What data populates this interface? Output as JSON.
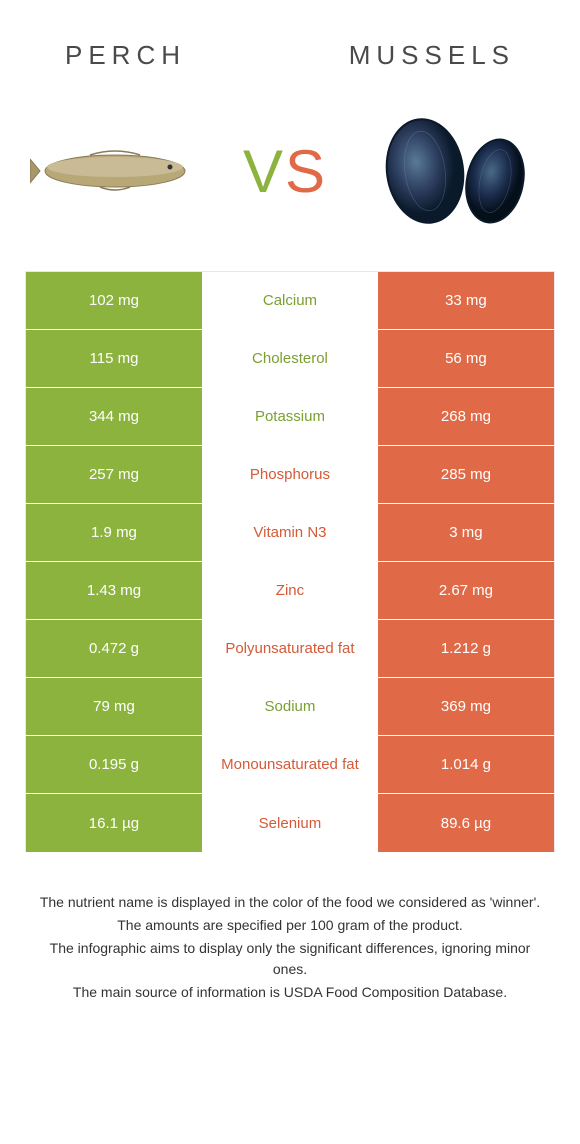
{
  "titles": {
    "left": "Perch",
    "right": "Mussels"
  },
  "vs": {
    "v": "V",
    "s": "S"
  },
  "colors": {
    "left": "#8bb33e",
    "right": "#e06a47",
    "text_green": "#7aa030",
    "text_orange": "#d45a38"
  },
  "rows": [
    {
      "left": "102 mg",
      "label": "Calcium",
      "right": "33 mg",
      "winner": "left"
    },
    {
      "left": "115 mg",
      "label": "Cholesterol",
      "right": "56 mg",
      "winner": "left"
    },
    {
      "left": "344 mg",
      "label": "Potassium",
      "right": "268 mg",
      "winner": "left"
    },
    {
      "left": "257 mg",
      "label": "Phosphorus",
      "right": "285 mg",
      "winner": "right"
    },
    {
      "left": "1.9 mg",
      "label": "Vitamin N3",
      "right": "3 mg",
      "winner": "right"
    },
    {
      "left": "1.43 mg",
      "label": "Zinc",
      "right": "2.67 mg",
      "winner": "right"
    },
    {
      "left": "0.472 g",
      "label": "Polyunsaturated fat",
      "right": "1.212 g",
      "winner": "right"
    },
    {
      "left": "79 mg",
      "label": "Sodium",
      "right": "369 mg",
      "winner": "left"
    },
    {
      "left": "0.195 g",
      "label": "Monounsaturated fat",
      "right": "1.014 g",
      "winner": "right"
    },
    {
      "left": "16.1 µg",
      "label": "Selenium",
      "right": "89.6 µg",
      "winner": "right"
    }
  ],
  "footer": {
    "line1": "The nutrient name is displayed in the color of the food we considered as 'winner'.",
    "line2": "The amounts are specified per 100 gram of the product.",
    "line3": "The infographic aims to display only the significant differences, ignoring minor ones.",
    "line4": "The main source of information is USDA Food Composition Database."
  }
}
